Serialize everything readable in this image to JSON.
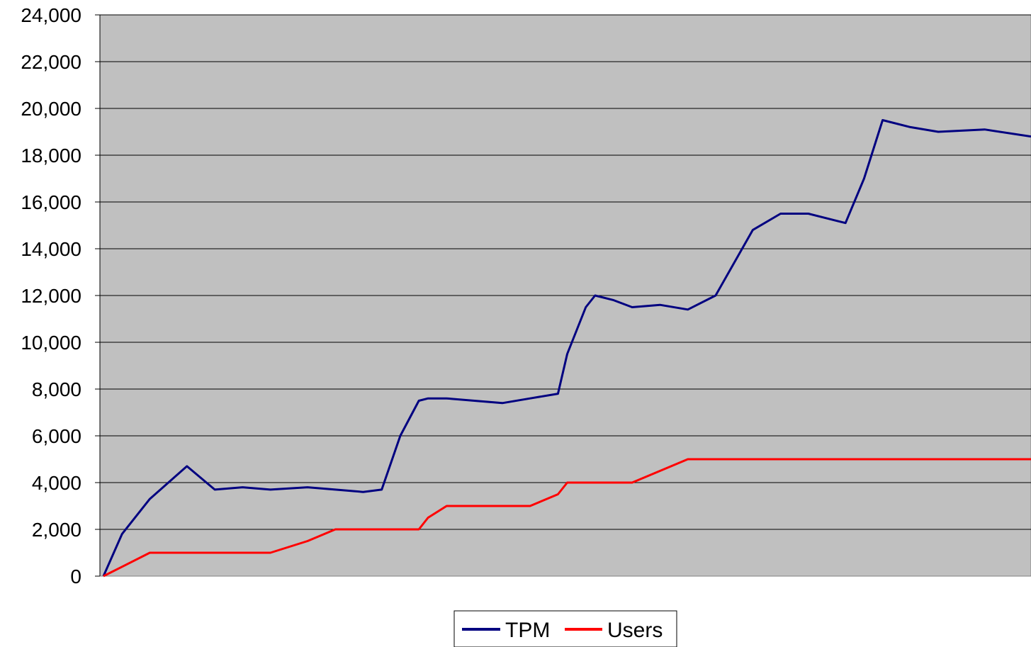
{
  "chart_data": {
    "type": "line",
    "title": "",
    "xlabel": "",
    "ylabel": "",
    "ylim": [
      0,
      24000
    ],
    "yticks": [
      "0",
      "2,000",
      "4,000",
      "6,000",
      "8,000",
      "10,000",
      "12,000",
      "14,000",
      "16,000",
      "18,000",
      "20,000",
      "22,000",
      "24,000"
    ],
    "ytick_values": [
      0,
      2000,
      4000,
      6000,
      8000,
      10000,
      12000,
      14000,
      16000,
      18000,
      20000,
      22000,
      24000
    ],
    "grid": true,
    "legend_position": "bottom",
    "plot_background": "#c0c0c0",
    "x": [
      0,
      2,
      5,
      9,
      12,
      15,
      18,
      22,
      25,
      28,
      30,
      32,
      34,
      35,
      37,
      40,
      43,
      46,
      49,
      50,
      52,
      53,
      55,
      57,
      60,
      63,
      66,
      70,
      73,
      76,
      79,
      80,
      82,
      84,
      87,
      90,
      95,
      100
    ],
    "series": [
      {
        "name": "TPM",
        "color": "#000080",
        "values": [
          0,
          1800,
          3300,
          4700,
          3700,
          3800,
          3700,
          3800,
          3700,
          3600,
          3700,
          6000,
          7500,
          7600,
          7600,
          7500,
          7400,
          7600,
          7800,
          9500,
          11500,
          12000,
          11800,
          11500,
          11600,
          11400,
          12000,
          14800,
          15500,
          15500,
          15200,
          15100,
          17000,
          19500,
          19200,
          19000,
          19100,
          18800
        ]
      },
      {
        "name": "Users",
        "color": "#ff0000",
        "values": [
          0,
          400,
          1000,
          1000,
          1000,
          1000,
          1000,
          1500,
          2000,
          2000,
          2000,
          2000,
          2000,
          2500,
          3000,
          3000,
          3000,
          3000,
          3500,
          4000,
          4000,
          4000,
          4000,
          4000,
          4500,
          5000,
          5000,
          5000,
          5000,
          5000,
          5000,
          5000,
          5000,
          5000,
          5000,
          5000,
          5000,
          5000
        ]
      }
    ]
  }
}
